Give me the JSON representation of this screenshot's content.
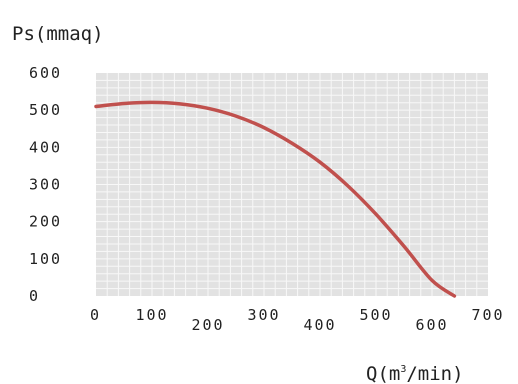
{
  "chart_data": {
    "type": "line",
    "title": "",
    "ylabel": "Ps(mmaq)",
    "xlabel": {
      "prefix": "Q(m",
      "sup": "3",
      "suffix": "/min)"
    },
    "xlim": [
      0,
      700
    ],
    "ylim": [
      0,
      600
    ],
    "x_ticks": [
      0,
      100,
      200,
      300,
      400,
      500,
      600,
      700
    ],
    "y_ticks": [
      0,
      100,
      200,
      300,
      400,
      500,
      600
    ],
    "x_tick_labels": [
      "0",
      "100",
      "200",
      "300",
      "400",
      "500",
      "600",
      "700"
    ],
    "y_tick_labels": [
      "0",
      "100",
      "200",
      "300",
      "400",
      "500",
      "600"
    ],
    "grid": true,
    "colors": {
      "curve": "#c0504d",
      "grid_bg": "#e2e2e2",
      "grid_line": "#f8f8f8"
    },
    "series": [
      {
        "x": [
          0,
          50,
          100,
          150,
          200,
          250,
          300,
          350,
          400,
          450,
          500,
          550,
          600,
          640
        ],
        "y": [
          510,
          518,
          521,
          517,
          505,
          484,
          453,
          411,
          360,
          296,
          220,
          134,
          42,
          0
        ]
      }
    ]
  }
}
